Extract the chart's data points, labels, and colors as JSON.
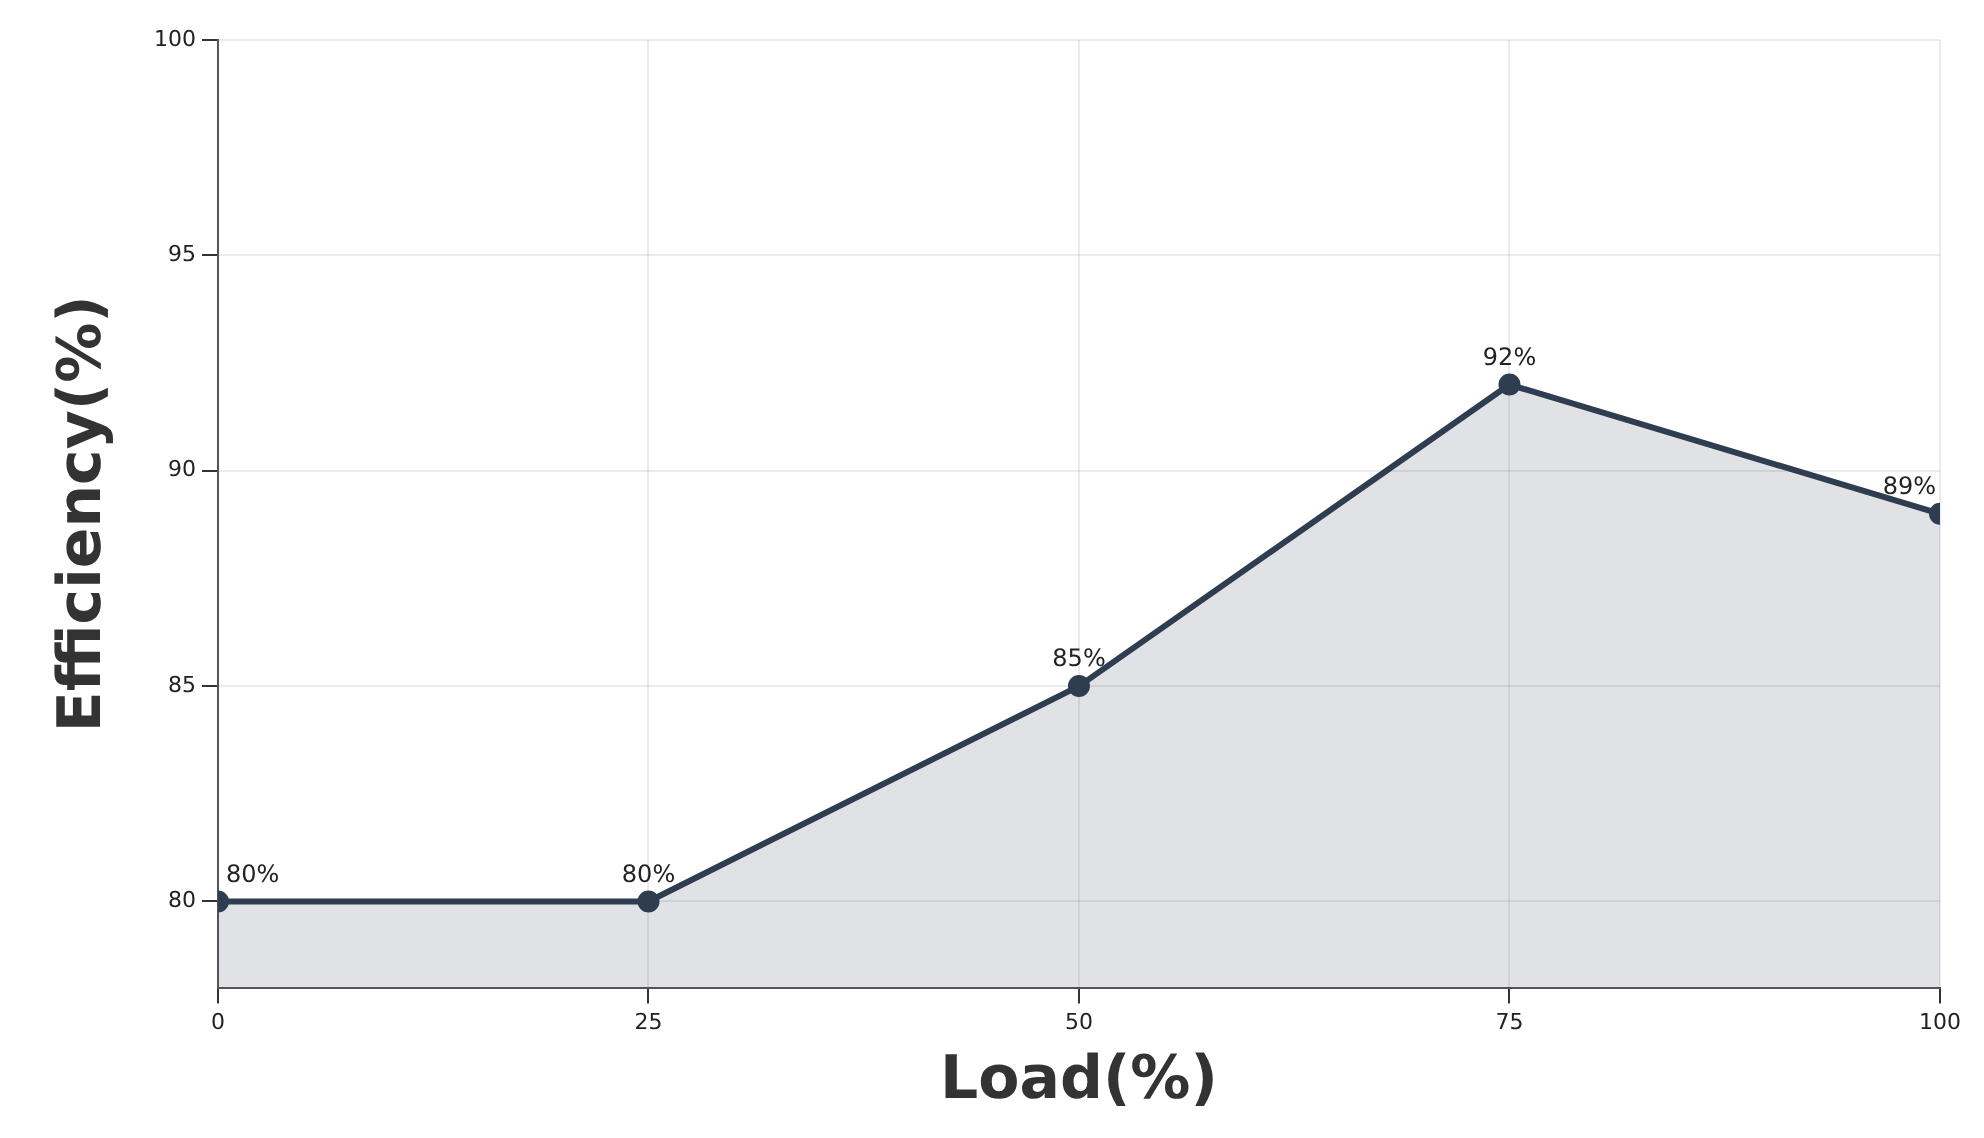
{
  "chart_data": {
    "type": "area",
    "xlabel": "Load(%)",
    "ylabel": "Efficiency(%)",
    "x": [
      0,
      25,
      50,
      75,
      100
    ],
    "series": [
      {
        "color": "#2e3d4f",
        "values": [
          80,
          80,
          85,
          92,
          89
        ],
        "value_labels": [
          "80%",
          "80%",
          "85%",
          "92%",
          "89%"
        ]
      }
    ],
    "xlim": [
      0,
      100
    ],
    "xticks": [
      0,
      25,
      50,
      75,
      100
    ],
    "ylim": [
      78,
      100
    ],
    "yticks": [
      80,
      85,
      90,
      95,
      100
    ],
    "grid": true,
    "marker": "circle",
    "legend": false
  }
}
